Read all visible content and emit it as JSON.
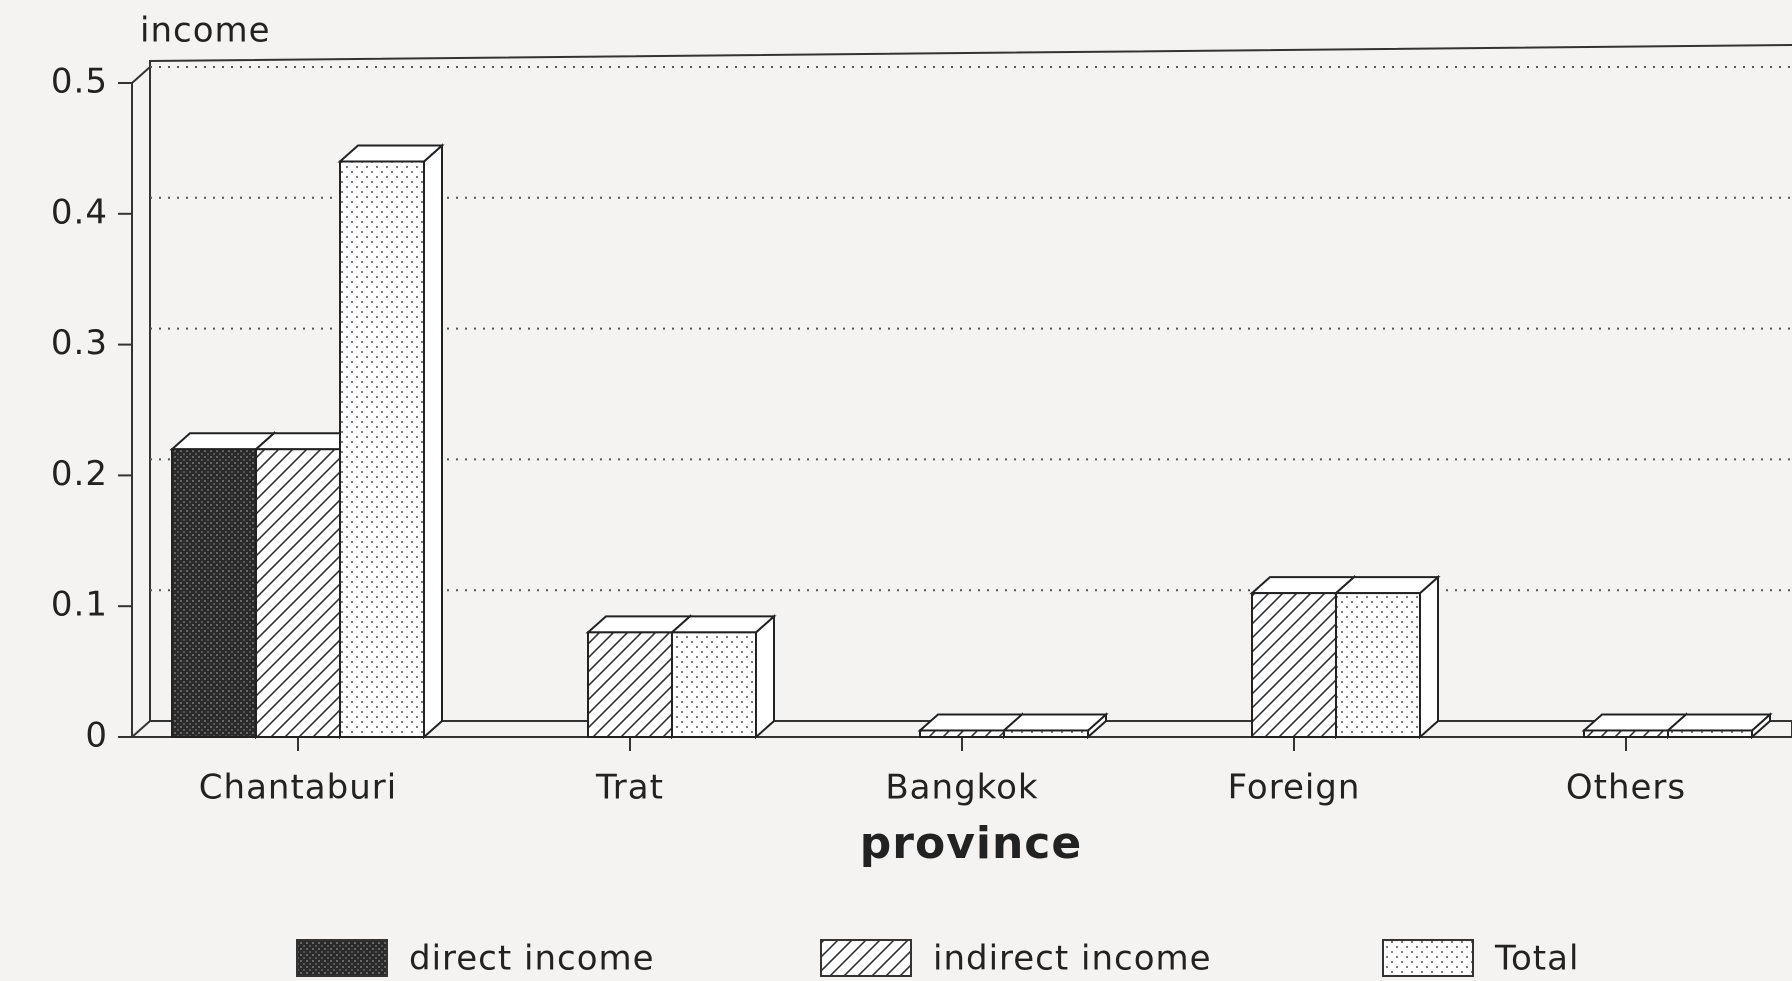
{
  "chart_data": {
    "type": "bar3d",
    "y_label": "income",
    "x_label": "province",
    "categories": [
      "Chantaburi",
      "Trat",
      "Bangkok",
      "Foreign",
      "Others"
    ],
    "series": [
      {
        "name": "direct income",
        "color": "#333333",
        "pattern": "solid",
        "values": [
          0.22,
          0,
          0,
          0,
          0
        ]
      },
      {
        "name": "indirect income",
        "color": "#ffffff",
        "pattern": "hatch",
        "values": [
          0.22,
          0.08,
          0.005,
          0.11,
          0.005
        ]
      },
      {
        "name": "Total",
        "color": "#ffffff",
        "pattern": "dots",
        "values": [
          0.44,
          0.08,
          0.005,
          0.11,
          0.005
        ]
      }
    ],
    "ylim": [
      0,
      0.5
    ],
    "yticks": [
      0,
      0.1,
      0.2,
      0.3,
      0.4,
      0.5
    ],
    "grid": true
  }
}
